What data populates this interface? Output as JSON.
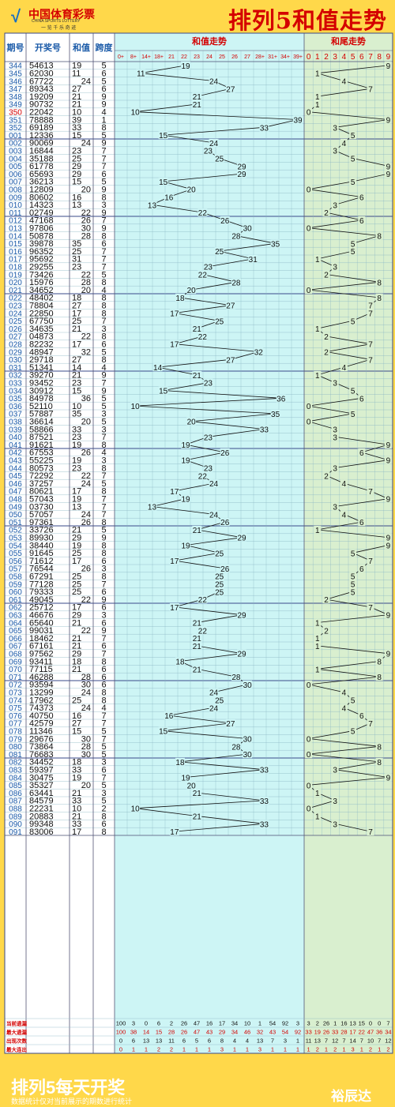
{
  "brand": {
    "logo_cn": "中国体育彩票",
    "logo_en": "CHINA SPORTS LOTTERY",
    "slogan": "一 览 千 乐 奇 迹"
  },
  "title": "排列5和值走势",
  "columns": {
    "period": "期号",
    "number": "开奖号",
    "sum": "和值",
    "span": "跨度",
    "sum_trend": "和值走势",
    "tail_trend": "和尾走势"
  },
  "sum_axis": [
    "0+",
    "8+",
    "14+",
    "18+",
    "21",
    "22",
    "23",
    "24",
    "25",
    "26",
    "27",
    "28+",
    "31+",
    "34+",
    "39+"
  ],
  "tail_axis": [
    "0",
    "1",
    "2",
    "3",
    "4",
    "5",
    "6",
    "7",
    "8",
    "9"
  ],
  "chart_data": {
    "type": "line",
    "draws": [
      {
        "period": "344",
        "number": "54613",
        "sum": 19,
        "span": 5
      },
      {
        "period": "345",
        "number": "62030",
        "sum": 11,
        "span": 6
      },
      {
        "period": "346",
        "number": "67722",
        "sum": 24,
        "span": 5
      },
      {
        "period": "347",
        "number": "89343",
        "sum": 27,
        "span": 6
      },
      {
        "period": "348",
        "number": "19209",
        "sum": 21,
        "span": 9
      },
      {
        "period": "349",
        "number": "90732",
        "sum": 21,
        "span": 9
      },
      {
        "period": "350",
        "number": "22042",
        "sum": 10,
        "span": 4
      },
      {
        "period": "351",
        "number": "78888",
        "sum": 39,
        "span": 1
      },
      {
        "period": "352",
        "number": "69189",
        "sum": 33,
        "span": 8
      },
      {
        "period": "001",
        "number": "12336",
        "sum": 15,
        "span": 5
      },
      {
        "period": "002",
        "number": "90069",
        "sum": 24,
        "span": 9
      },
      {
        "period": "003",
        "number": "16844",
        "sum": 23,
        "span": 7
      },
      {
        "period": "004",
        "number": "35188",
        "sum": 25,
        "span": 7
      },
      {
        "period": "005",
        "number": "61778",
        "sum": 29,
        "span": 7
      },
      {
        "period": "006",
        "number": "65693",
        "sum": 29,
        "span": 6
      },
      {
        "period": "007",
        "number": "36213",
        "sum": 15,
        "span": 5
      },
      {
        "period": "008",
        "number": "12809",
        "sum": 20,
        "span": 9
      },
      {
        "period": "009",
        "number": "80602",
        "sum": 16,
        "span": 8
      },
      {
        "period": "010",
        "number": "14323",
        "sum": 13,
        "span": 3
      },
      {
        "period": "011",
        "number": "02749",
        "sum": 22,
        "span": 9
      },
      {
        "period": "012",
        "number": "47168",
        "sum": 26,
        "span": 7
      },
      {
        "period": "013",
        "number": "97806",
        "sum": 30,
        "span": 9
      },
      {
        "period": "014",
        "number": "50878",
        "sum": 28,
        "span": 8
      },
      {
        "period": "015",
        "number": "39878",
        "sum": 35,
        "span": 6
      },
      {
        "period": "016",
        "number": "96352",
        "sum": 25,
        "span": 7
      },
      {
        "period": "017",
        "number": "95692",
        "sum": 31,
        "span": 7
      },
      {
        "period": "018",
        "number": "29255",
        "sum": 23,
        "span": 7
      },
      {
        "period": "019",
        "number": "73426",
        "sum": 22,
        "span": 5
      },
      {
        "period": "020",
        "number": "15976",
        "sum": 28,
        "span": 8
      },
      {
        "period": "021",
        "number": "34652",
        "sum": 20,
        "span": 4
      },
      {
        "period": "022",
        "number": "48402",
        "sum": 18,
        "span": 8
      },
      {
        "period": "023",
        "number": "78804",
        "sum": 27,
        "span": 8
      },
      {
        "period": "024",
        "number": "22850",
        "sum": 17,
        "span": 8
      },
      {
        "period": "025",
        "number": "67750",
        "sum": 25,
        "span": 7
      },
      {
        "period": "026",
        "number": "34635",
        "sum": 21,
        "span": 3
      },
      {
        "period": "027",
        "number": "04873",
        "sum": 22,
        "span": 8
      },
      {
        "period": "028",
        "number": "82232",
        "sum": 17,
        "span": 6
      },
      {
        "period": "029",
        "number": "48947",
        "sum": 32,
        "span": 5
      },
      {
        "period": "030",
        "number": "29718",
        "sum": 27,
        "span": 8
      },
      {
        "period": "031",
        "number": "51341",
        "sum": 14,
        "span": 4
      },
      {
        "period": "032",
        "number": "39270",
        "sum": 21,
        "span": 9
      },
      {
        "period": "033",
        "number": "93452",
        "sum": 23,
        "span": 7
      },
      {
        "period": "034",
        "number": "30912",
        "sum": 15,
        "span": 9
      },
      {
        "period": "035",
        "number": "84978",
        "sum": 36,
        "span": 5
      },
      {
        "period": "036",
        "number": "52110",
        "sum": 10,
        "span": 5
      },
      {
        "period": "037",
        "number": "57887",
        "sum": 35,
        "span": 3
      },
      {
        "period": "038",
        "number": "36614",
        "sum": 20,
        "span": 5
      },
      {
        "period": "039",
        "number": "58866",
        "sum": 33,
        "span": 3
      },
      {
        "period": "040",
        "number": "87521",
        "sum": 23,
        "span": 7
      },
      {
        "period": "041",
        "number": "91621",
        "sum": 19,
        "span": 8
      },
      {
        "period": "042",
        "number": "67553",
        "sum": 26,
        "span": 4
      },
      {
        "period": "043",
        "number": "55225",
        "sum": 19,
        "span": 3
      },
      {
        "period": "044",
        "number": "80573",
        "sum": 23,
        "span": 8
      },
      {
        "period": "045",
        "number": "72292",
        "sum": 22,
        "span": 7
      },
      {
        "period": "046",
        "number": "37257",
        "sum": 24,
        "span": 5
      },
      {
        "period": "047",
        "number": "80621",
        "sum": 17,
        "span": 8
      },
      {
        "period": "048",
        "number": "57043",
        "sum": 19,
        "span": 7
      },
      {
        "period": "049",
        "number": "03730",
        "sum": 13,
        "span": 7
      },
      {
        "period": "050",
        "number": "57057",
        "sum": 24,
        "span": 7
      },
      {
        "period": "051",
        "number": "97361",
        "sum": 26,
        "span": 8
      },
      {
        "period": "052",
        "number": "33726",
        "sum": 21,
        "span": 5
      },
      {
        "period": "053",
        "number": "89930",
        "sum": 29,
        "span": 9
      },
      {
        "period": "054",
        "number": "38440",
        "sum": 19,
        "span": 8
      },
      {
        "period": "055",
        "number": "91645",
        "sum": 25,
        "span": 8
      },
      {
        "period": "056",
        "number": "71612",
        "sum": 17,
        "span": 6
      },
      {
        "period": "057",
        "number": "76544",
        "sum": 26,
        "span": 3
      },
      {
        "period": "058",
        "number": "67291",
        "sum": 25,
        "span": 8
      },
      {
        "period": "059",
        "number": "77128",
        "sum": 25,
        "span": 7
      },
      {
        "period": "060",
        "number": "79333",
        "sum": 25,
        "span": 6
      },
      {
        "period": "061",
        "number": "49045",
        "sum": 22,
        "span": 9
      },
      {
        "period": "062",
        "number": "25712",
        "sum": 17,
        "span": 6
      },
      {
        "period": "063",
        "number": "46676",
        "sum": 29,
        "span": 3
      },
      {
        "period": "064",
        "number": "65640",
        "sum": 21,
        "span": 6
      },
      {
        "period": "065",
        "number": "99031",
        "sum": 22,
        "span": 9
      },
      {
        "period": "066",
        "number": "18462",
        "sum": 21,
        "span": 7
      },
      {
        "period": "067",
        "number": "67161",
        "sum": 21,
        "span": 6
      },
      {
        "period": "068",
        "number": "97562",
        "sum": 29,
        "span": 7
      },
      {
        "period": "069",
        "number": "93411",
        "sum": 18,
        "span": 8
      },
      {
        "period": "070",
        "number": "77115",
        "sum": 21,
        "span": 6
      },
      {
        "period": "071",
        "number": "46288",
        "sum": 28,
        "span": 6
      },
      {
        "period": "072",
        "number": "93594",
        "sum": 30,
        "span": 6
      },
      {
        "period": "073",
        "number": "13299",
        "sum": 24,
        "span": 8
      },
      {
        "period": "074",
        "number": "17962",
        "sum": 25,
        "span": 8
      },
      {
        "period": "075",
        "number": "74373",
        "sum": 24,
        "span": 4
      },
      {
        "period": "076",
        "number": "40750",
        "sum": 16,
        "span": 7
      },
      {
        "period": "077",
        "number": "42579",
        "sum": 27,
        "span": 7
      },
      {
        "period": "078",
        "number": "11346",
        "sum": 15,
        "span": 5
      },
      {
        "period": "079",
        "number": "29676",
        "sum": 30,
        "span": 7
      },
      {
        "period": "080",
        "number": "73864",
        "sum": 28,
        "span": 5
      },
      {
        "period": "081",
        "number": "76683",
        "sum": 30,
        "span": 5
      },
      {
        "period": "082",
        "number": "34452",
        "sum": 18,
        "span": 3
      },
      {
        "period": "083",
        "number": "59397",
        "sum": 33,
        "span": 6
      },
      {
        "period": "084",
        "number": "30475",
        "sum": 19,
        "span": 7
      },
      {
        "period": "085",
        "number": "35327",
        "sum": 20,
        "span": 5
      },
      {
        "period": "086",
        "number": "63441",
        "sum": 21,
        "span": 3
      },
      {
        "period": "087",
        "number": "84579",
        "sum": 33,
        "span": 5
      },
      {
        "period": "088",
        "number": "22231",
        "sum": 10,
        "span": 2
      },
      {
        "period": "089",
        "number": "20883",
        "sum": 21,
        "span": 8
      },
      {
        "period": "090",
        "number": "99348",
        "sum": 33,
        "span": 6
      },
      {
        "period": "091",
        "number": "83006",
        "sum": 17,
        "span": 8
      }
    ]
  },
  "stats": {
    "labels": [
      "当前遗漏",
      "最大遗漏",
      "出现次数",
      "最大连出"
    ],
    "sum_rows": [
      [
        100,
        3,
        0,
        6,
        2,
        26,
        47,
        16,
        17,
        34,
        10,
        1,
        54,
        92,
        3
      ],
      [
        100,
        38,
        14,
        15,
        28,
        26,
        47,
        43,
        29,
        34,
        46,
        32,
        43,
        54,
        92
      ],
      [
        0,
        6,
        13,
        13,
        11,
        6,
        5,
        6,
        8,
        4,
        4,
        13,
        7,
        3,
        1
      ],
      [
        0,
        1,
        1,
        2,
        2,
        1,
        1,
        1,
        3,
        1,
        1,
        3,
        1,
        1,
        1
      ]
    ],
    "tail_rows": [
      [
        3,
        2,
        26,
        1,
        16,
        13,
        15,
        0,
        0,
        7
      ],
      [
        33,
        19,
        26,
        33,
        28,
        17,
        22,
        47,
        36,
        34
      ],
      [
        11,
        13,
        7,
        12,
        7,
        14,
        7,
        10,
        7,
        12
      ],
      [
        1,
        2,
        1,
        2,
        1,
        3,
        1,
        2,
        1,
        2
      ]
    ]
  },
  "footer": {
    "headline": "排列5每天开奖",
    "note": "数据统计仅对当前展示的期数进行统计",
    "brand": "裕辰达"
  },
  "colors": {
    "frame": "#ffd84a",
    "brand_red": "#d40000",
    "sum_bg": "#cdf5f5",
    "tail_bg": "#d9efcf",
    "grid": "#8ab6c4"
  }
}
